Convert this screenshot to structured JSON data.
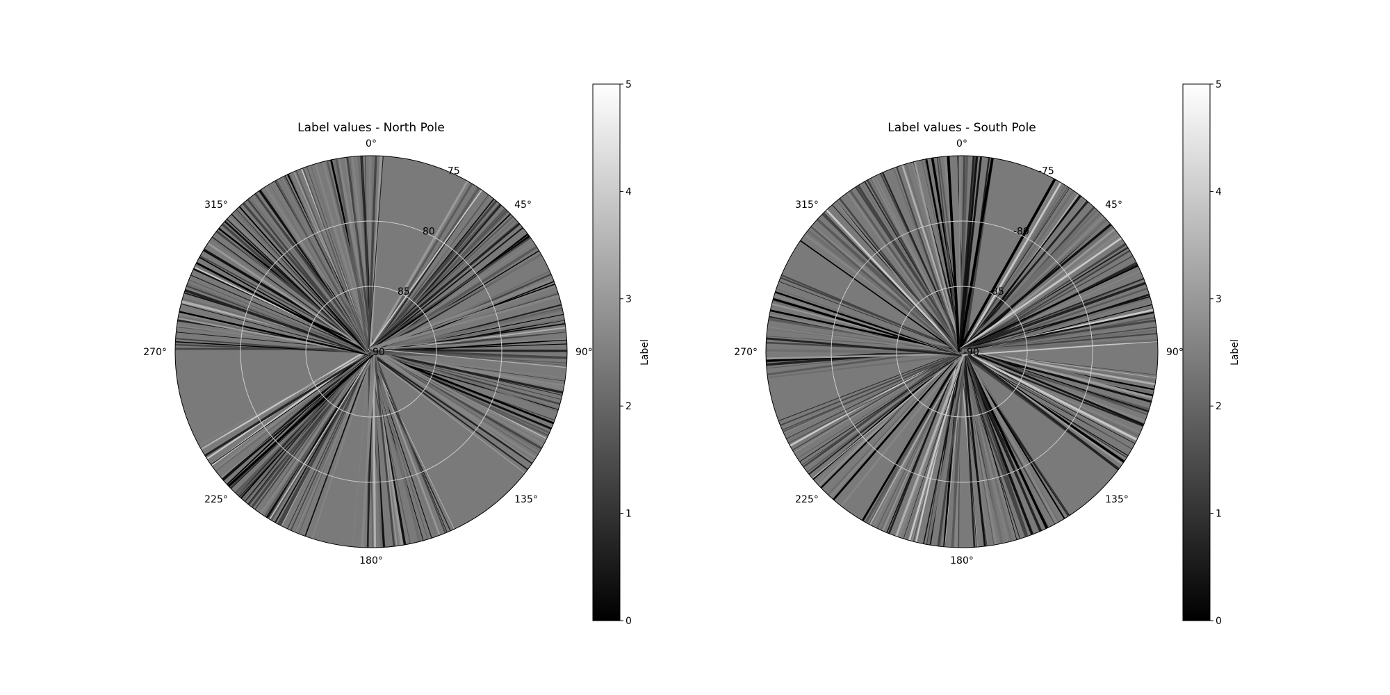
{
  "chart_data": [
    {
      "type": "polar-heatmap",
      "title": "Label values - North Pole",
      "projection": "north-polar-stereographic",
      "angular_ticks": [
        "0°",
        "45°",
        "90°",
        "135°",
        "180°",
        "225°",
        "270°",
        "315°"
      ],
      "radial_ticks": [
        "90",
        "85",
        "80",
        "75"
      ],
      "radial_grid": [
        90,
        85,
        80
      ],
      "r_max": 75,
      "colormap": "gray",
      "colorbar": {
        "label": "Label",
        "range": [
          0,
          5
        ],
        "ticks": [
          "0",
          "1",
          "2",
          "3",
          "4",
          "5"
        ]
      },
      "pattern": "radial streaks of ground-track swaths",
      "seed": 7
    },
    {
      "type": "polar-heatmap",
      "title": "Label values - South Pole",
      "projection": "south-polar-stereographic",
      "angular_ticks": [
        "0°",
        "45°",
        "90°",
        "135°",
        "180°",
        "225°",
        "270°",
        "315°"
      ],
      "radial_ticks": [
        "-90",
        "-85",
        "-80",
        "-75"
      ],
      "radial_grid": [
        -90,
        -85,
        -80
      ],
      "r_max": -75,
      "colormap": "gray",
      "colorbar": {
        "label": "Label",
        "range": [
          0,
          5
        ],
        "ticks": [
          "0",
          "1",
          "2",
          "3",
          "4",
          "5"
        ]
      },
      "pattern": "radial streaks of ground-track swaths",
      "seed": 13
    }
  ]
}
